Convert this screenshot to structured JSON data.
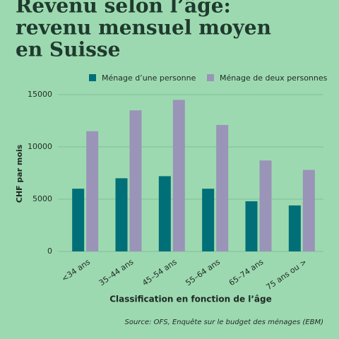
{
  "chart_data": {
    "type": "bar",
    "title_lines": [
      "Revenu selon l’âge:",
      "revenu mensuel moyen",
      "en Suisse"
    ],
    "y_label": "CHF par mois",
    "x_label": "Classification en fonction de l’âge",
    "source": "Source: OFS, Enquête sur le budget des ménages (EBM)",
    "categories": [
      "<34 ans",
      "35–44 ans",
      "45–54 ans",
      "55–64 ans",
      "65–74 ans",
      "75 ans ou >"
    ],
    "series": [
      {
        "name": "Ménage d’une personne",
        "color": "#006f78",
        "values": [
          6000,
          7000,
          7200,
          6000,
          4800,
          4400
        ]
      },
      {
        "name": "Ménage de deux personnes",
        "color": "#9a94b8",
        "values": [
          11500,
          13500,
          14500,
          12100,
          8700,
          7800
        ]
      }
    ],
    "ylim": [
      0,
      15000
    ],
    "yticks": [
      0,
      5000,
      10000,
      15000
    ],
    "grid": true
  }
}
